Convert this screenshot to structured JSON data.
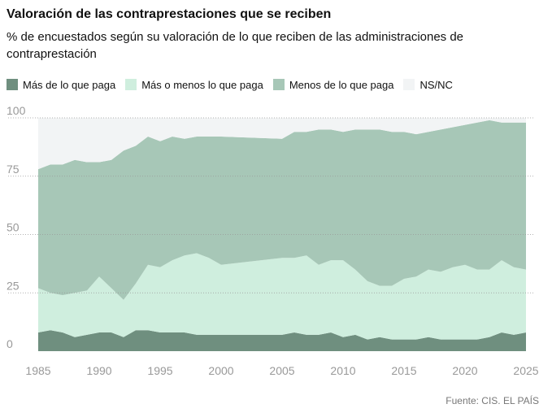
{
  "title": "Valoración de las contraprestaciones que se reciben",
  "subtitle": "% de encuestados según su valoración de lo que reciben de las administraciones de contraprestación",
  "source": "Fuente: CIS. EL PAÍS",
  "colors": {
    "mas": "#6f8f7f",
    "masomenos": "#cfeede",
    "menos": "#a7c7b7",
    "nsnc": "#f2f4f5",
    "grid": "#999999",
    "tick": "#999999"
  },
  "chart_data": {
    "type": "area",
    "stacked": true,
    "x": [
      1985,
      1986,
      1987,
      1988,
      1989,
      1990,
      1991,
      1992,
      1993,
      1994,
      1995,
      1996,
      1997,
      1998,
      1999,
      2000,
      2005,
      2006,
      2007,
      2008,
      2009,
      2010,
      2011,
      2012,
      2013,
      2014,
      2015,
      2016,
      2017,
      2018,
      2019,
      2020,
      2021,
      2022,
      2023,
      2024,
      2025
    ],
    "xlim": [
      1985,
      2025
    ],
    "ylim": [
      0,
      100
    ],
    "xticks": [
      1985,
      1990,
      1995,
      2000,
      2005,
      2010,
      2015,
      2020,
      2025
    ],
    "yticks": [
      0,
      25,
      50,
      75,
      100
    ],
    "legend_position": "top",
    "grid": true,
    "series": [
      {
        "key": "mas",
        "name": "Más de lo que paga",
        "values": [
          8,
          9,
          8,
          6,
          7,
          8,
          8,
          6,
          9,
          9,
          8,
          8,
          8,
          7,
          7,
          7,
          7,
          8,
          7,
          7,
          8,
          6,
          7,
          5,
          6,
          5,
          5,
          5,
          6,
          5,
          5,
          5,
          5,
          6,
          8,
          7,
          8
        ]
      },
      {
        "key": "masomenos",
        "name": "Más o menos lo que paga",
        "values": [
          19,
          16,
          16,
          19,
          19,
          24,
          19,
          16,
          20,
          28,
          28,
          31,
          33,
          35,
          33,
          30,
          33,
          32,
          34,
          30,
          31,
          33,
          28,
          25,
          22,
          23,
          26,
          27,
          29,
          29,
          31,
          32,
          30,
          29,
          31,
          29,
          27
        ]
      },
      {
        "key": "menos",
        "name": "Menos de lo que paga",
        "values": [
          51,
          55,
          56,
          57,
          55,
          49,
          55,
          64,
          59,
          55,
          54,
          53,
          50,
          50,
          52,
          55,
          51,
          54,
          53,
          58,
          56,
          55,
          60,
          65,
          67,
          66,
          63,
          61,
          59,
          61,
          60,
          60,
          63,
          64,
          59,
          62,
          63
        ]
      },
      {
        "key": "nsnc",
        "name": "NS/NC",
        "values": [
          22,
          20,
          20,
          18,
          19,
          19,
          18,
          14,
          12,
          8,
          10,
          8,
          9,
          8,
          8,
          8,
          9,
          6,
          6,
          5,
          5,
          6,
          5,
          5,
          5,
          6,
          6,
          7,
          6,
          5,
          4,
          3,
          2,
          1,
          2,
          2,
          2
        ]
      }
    ]
  }
}
